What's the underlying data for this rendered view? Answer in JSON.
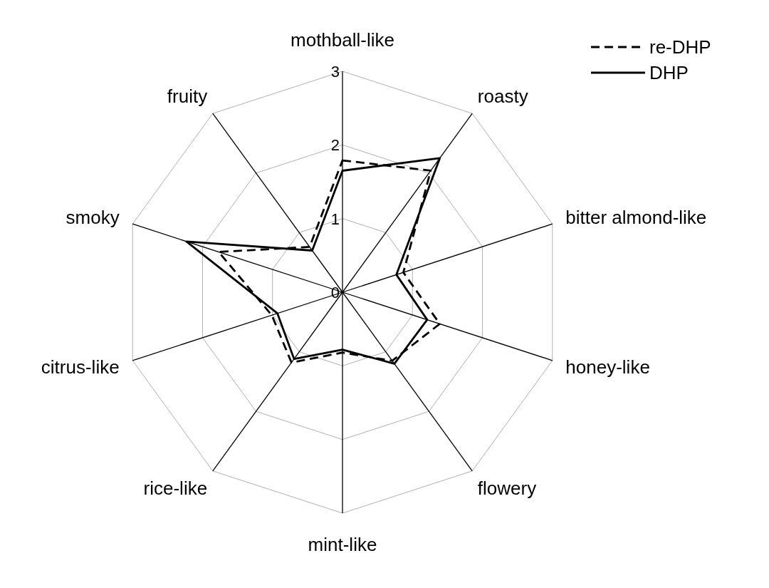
{
  "chart_data": {
    "type": "radar",
    "categories": [
      "mothball-like",
      "roasty",
      "bitter almond-like",
      "honey-like",
      "flowery",
      "mint-like",
      "rice-like",
      "citrus-like",
      "smoky",
      "fruity"
    ],
    "series": [
      {
        "name": "re-DHP",
        "color": "#000000",
        "line_style": "dashed",
        "values": [
          1.79,
          2.04,
          0.87,
          1.39,
          1.15,
          0.82,
          1.18,
          1.01,
          1.77,
          0.76
        ]
      },
      {
        "name": "DHP",
        "color": "#000000",
        "line_style": "solid",
        "values": [
          1.65,
          2.25,
          0.77,
          1.21,
          1.2,
          0.78,
          1.12,
          0.93,
          2.23,
          0.7
        ]
      }
    ],
    "ylim": [
      0,
      3
    ],
    "yticks": [
      0,
      1,
      2,
      3
    ],
    "grid": true,
    "legend": "top right",
    "marker": "none"
  }
}
